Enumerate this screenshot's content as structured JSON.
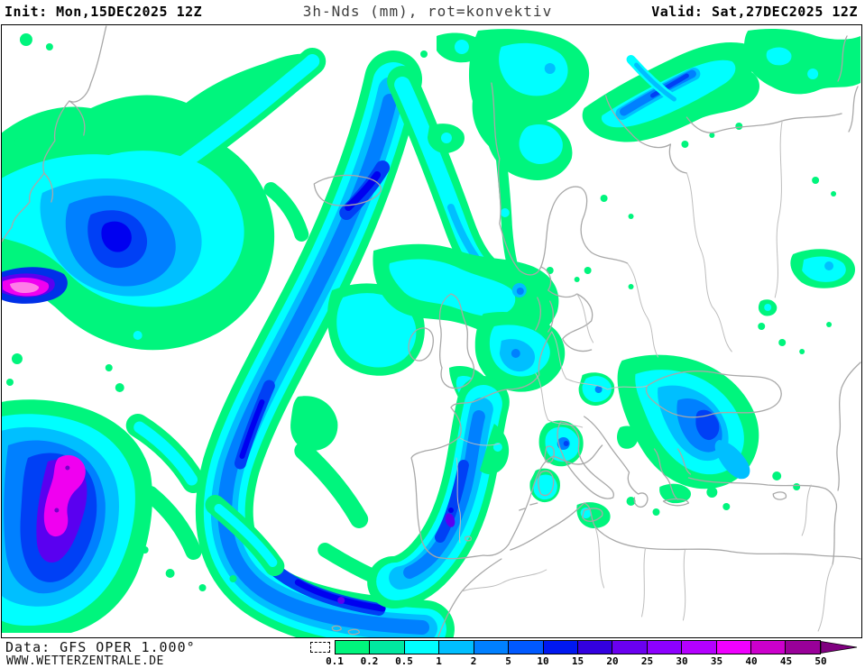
{
  "header": {
    "init": "Init: Mon,15DEC2025 12Z",
    "title": "3h-Nds (mm), rot=konvektiv",
    "valid": "Valid: Sat,27DEC2025 12Z"
  },
  "footer": {
    "source": "Data: GFS OPER 1.000°",
    "website": "WWW.WETTERZENTRALE.DE"
  },
  "legend": {
    "tick_labels": [
      "0.1",
      "0.2",
      "0.5",
      "1",
      "2",
      "5",
      "10",
      "15",
      "20",
      "25",
      "30",
      "35",
      "40",
      "45",
      "50"
    ],
    "segment_colors": [
      "#00f57d",
      "#00e8a0",
      "#00ffff",
      "#00bfff",
      "#0080ff",
      "#0059ff",
      "#0018f0",
      "#3300e0",
      "#6a00f0",
      "#8d00ff",
      "#b400ff",
      "#f000ff",
      "#cc00cc",
      "#990099"
    ],
    "overflow_arrow_color": "#800080"
  },
  "map": {
    "background_color": "#ffffff",
    "coastline_color": "#a8a8a8",
    "frame_color": "#000000"
  }
}
